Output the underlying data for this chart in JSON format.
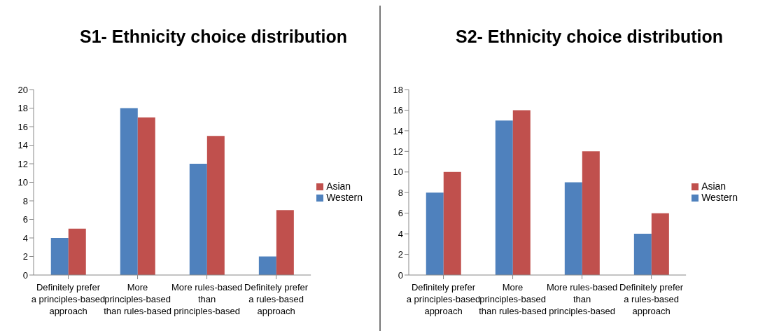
{
  "chart_data": [
    {
      "type": "bar",
      "title": "S1- Ethnicity choice distribution",
      "categories": [
        "Definitely prefer a principles-based approach",
        "More principles-based than rules-based",
        "More rules-based than principles-based",
        "Definitely prefer a rules-based approach"
      ],
      "series": [
        {
          "name": "Western",
          "color": "#4f81bd",
          "values": [
            4,
            18,
            12,
            2
          ]
        },
        {
          "name": "Asian",
          "color": "#c0504d",
          "values": [
            5,
            17,
            15,
            7
          ]
        }
      ],
      "ylim": [
        0,
        20
      ],
      "yticks": [
        0,
        2,
        4,
        6,
        8,
        10,
        12,
        14,
        16,
        18,
        20
      ],
      "grid": false,
      "legend": "right"
    },
    {
      "type": "bar",
      "title": "S2- Ethnicity choice distribution",
      "categories": [
        "Definitely prefer a principles-based approach",
        "More principles-based than rules-based",
        "More rules-based than principles-based",
        "Definitely prefer a rules-based approach"
      ],
      "series": [
        {
          "name": "Western",
          "color": "#4f81bd",
          "values": [
            8,
            15,
            9,
            4
          ]
        },
        {
          "name": "Asian",
          "color": "#c0504d",
          "values": [
            10,
            16,
            12,
            6
          ]
        }
      ],
      "ylim": [
        0,
        18
      ],
      "yticks": [
        0,
        2,
        4,
        6,
        8,
        10,
        12,
        14,
        16,
        18
      ],
      "grid": false,
      "legend": "right"
    }
  ]
}
